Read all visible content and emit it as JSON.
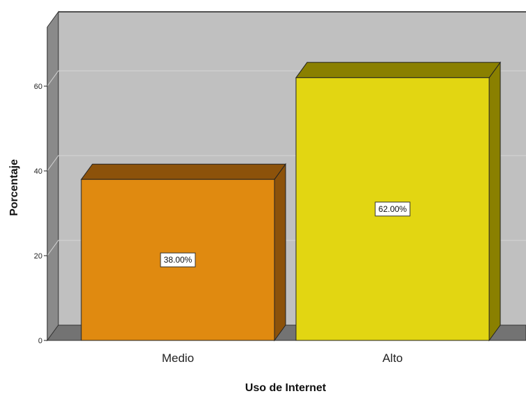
{
  "chart_data": {
    "type": "bar",
    "style": "3d",
    "categories": [
      "Medio",
      "Alto"
    ],
    "values": [
      38,
      62
    ],
    "data_labels": [
      "38.00%",
      "62.00%"
    ],
    "bar_colors": [
      "#e08a10",
      "#e2d612"
    ],
    "bar_top_colors": [
      "#8c520a",
      "#8a8000"
    ],
    "bar_side_colors": [
      "#8c520a",
      "#8a8000"
    ],
    "xlabel": "Uso de Internet",
    "ylabel": "Porcentaje",
    "yticks": [
      0,
      20,
      40,
      60
    ],
    "ylim": [
      0,
      76
    ],
    "grid": true,
    "legend": "none",
    "background_color": "#c0c0c0",
    "floor_color": "#737373",
    "wall_color": "#8a8a8a"
  }
}
